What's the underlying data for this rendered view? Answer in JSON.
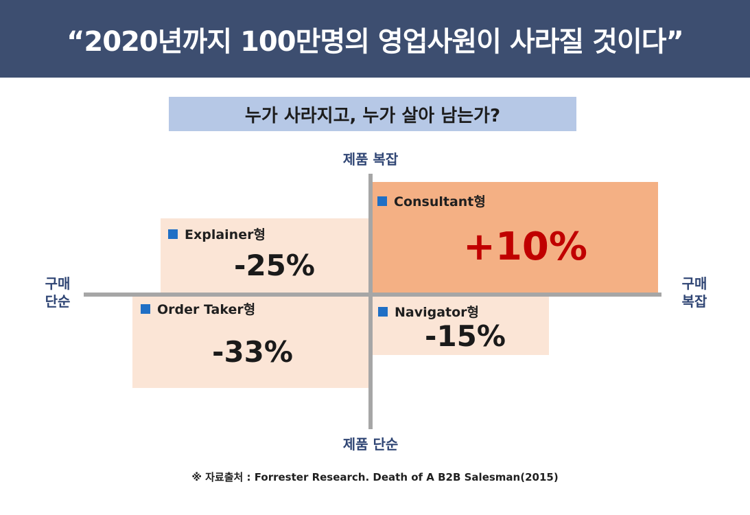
{
  "header": {
    "title": "“2020년까지 100만명의 영업사원이 사라질 것이다”"
  },
  "subtitle": "누가 사라지고, 누가 살아 남는가?",
  "axes": {
    "top": "제품 복잡",
    "bottom": "제품 단순",
    "left": [
      "구매",
      "단순"
    ],
    "right": [
      "구매",
      "복잡"
    ]
  },
  "quadrants": {
    "q1": {
      "label": "Consultant형",
      "value": "+10%",
      "color": "#f4b084",
      "value_color": "#c00000"
    },
    "q2": {
      "label": "Explainer형",
      "value": "-25%",
      "color": "#fbe5d6"
    },
    "q3": {
      "label": "Order Taker형",
      "value": "-33%",
      "color": "#fbe5d6"
    },
    "q4": {
      "label": "Navigator형",
      "value": "-15%",
      "color": "#fbe5d6"
    }
  },
  "bullet_icon": "blue-square-icon",
  "colors": {
    "header_bg": "#3d4e70",
    "subtitle_bg": "#b6c8e6",
    "axis_label": "#2f4574",
    "bullet": "#1f6fc5"
  },
  "footnote": "※ 자료출처 : Forrester Research. Death of A B2B Salesman(2015)"
}
